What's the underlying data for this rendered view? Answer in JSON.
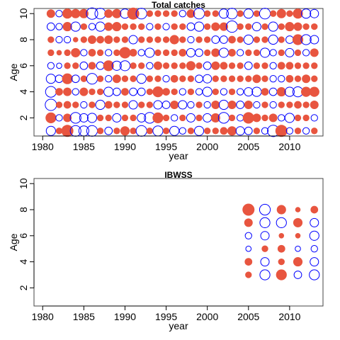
{
  "chart_data": [
    {
      "type": "scatter",
      "subtype": "bubble",
      "title": "Total catches",
      "xlabel": "year",
      "ylabel": "Age",
      "xlim": [
        1980,
        2013
      ],
      "ylim": [
        1,
        10
      ],
      "xticks": [
        1980,
        1985,
        1990,
        1995,
        2000,
        2005,
        2010
      ],
      "yticks": [
        2,
        4,
        6,
        8,
        10
      ],
      "xtick_labels": [
        "1980",
        "1985",
        "1990",
        "1995",
        "2000",
        "2005",
        "2010"
      ],
      "ytick_labels": [
        "2",
        "4",
        "6",
        "8",
        "10"
      ],
      "grid": false,
      "legend": "none",
      "colors": {
        "positive": "#e8553f",
        "negative": "#0000ff"
      },
      "encoding": "residual magnitude as circle size; positive = filled red, negative = open blue",
      "years": [
        1981,
        1982,
        1983,
        1984,
        1985,
        1986,
        1987,
        1988,
        1989,
        1990,
        1991,
        1992,
        1993,
        1994,
        1995,
        1996,
        1997,
        1998,
        1999,
        2000,
        2001,
        2002,
        2003,
        2004,
        2005,
        2006,
        2007,
        2008,
        2009,
        2010,
        2011,
        2012,
        2013
      ],
      "ages": [
        1,
        2,
        3,
        4,
        5,
        6,
        7,
        8,
        9,
        10
      ],
      "residuals": [
        [
          -0.6,
          0.8,
          -0.9,
          -0.8,
          -0.6,
          -0.3,
          0.3,
          0.3,
          -0.4,
          0.5
        ],
        [
          0.3,
          -0.3,
          0.3,
          0.4,
          -0.4,
          -0.2,
          0.2,
          -0.3,
          -0.3,
          -0.3
        ],
        [
          1.0,
          0.5,
          0.4,
          0.5,
          0.8,
          0.3,
          0.3,
          -0.3,
          0.6,
          0.7
        ],
        [
          -0.8,
          -0.8,
          0.3,
          -0.3,
          -0.4,
          0.3,
          0.6,
          0.2,
          -0.6,
          0.6
        ],
        [
          -0.7,
          -0.5,
          -0.3,
          0.5,
          0.3,
          -0.4,
          -0.3,
          0.3,
          0.3,
          0.6
        ],
        [
          -0.8,
          -0.6,
          0.3,
          0.3,
          -0.8,
          0.4,
          0.4,
          0.5,
          -0.3,
          -0.9
        ],
        [
          0.3,
          0.3,
          -0.6,
          0.3,
          0.3,
          -0.4,
          0.3,
          0.4,
          -0.6,
          -0.8
        ],
        [
          -0.4,
          0.3,
          0.4,
          -0.6,
          -0.3,
          0.8,
          -0.3,
          0.5,
          0.5,
          0.5
        ],
        [
          0.3,
          -0.5,
          0.3,
          -0.4,
          0.5,
          -0.6,
          0.3,
          0.3,
          0.6,
          0.6
        ],
        [
          0.6,
          0.3,
          0.3,
          0.4,
          0.3,
          -0.7,
          0.9,
          0.3,
          0.3,
          -0.6
        ],
        [
          0.3,
          0.3,
          -0.5,
          -0.4,
          0.3,
          0.3,
          0.4,
          -0.5,
          0.3,
          1.0
        ],
        [
          -0.8,
          -0.5,
          0.3,
          -0.4,
          -0.6,
          0.3,
          -0.3,
          0.3,
          0.3,
          -0.8
        ],
        [
          0.3,
          -0.8,
          0.3,
          0.3,
          0.3,
          -0.3,
          -0.6,
          0.3,
          -0.3,
          0.3
        ],
        [
          -0.7,
          0.8,
          -0.5,
          0.8,
          0.3,
          0.5,
          0.3,
          0.3,
          0.3,
          0.3
        ],
        [
          0.3,
          0.3,
          -0.4,
          0.4,
          -0.3,
          0.3,
          0.3,
          0.3,
          -0.3,
          0.3
        ],
        [
          -0.6,
          -0.3,
          0.5,
          0.3,
          0.4,
          0.3,
          0.3,
          0.6,
          0.3,
          0.3
        ],
        [
          -0.3,
          0.3,
          -0.5,
          -0.3,
          0.3,
          0.3,
          0.4,
          0.3,
          0.3,
          -0.3
        ],
        [
          0.3,
          -0.5,
          -0.3,
          0.3,
          0.3,
          0.6,
          -0.5,
          -0.3,
          -0.4,
          0.5
        ],
        [
          -0.6,
          0.3,
          0.3,
          -0.3,
          -0.4,
          0.3,
          -0.4,
          0.3,
          -0.6,
          -0.8
        ],
        [
          0.3,
          -0.5,
          -0.3,
          -0.6,
          -0.5,
          -0.4,
          0.3,
          0.3,
          0.3,
          0.3
        ],
        [
          0.3,
          0.6,
          0.5,
          0.3,
          0.3,
          0.5,
          0.5,
          -0.4,
          0.5,
          0.3
        ],
        [
          0.4,
          -0.8,
          -0.6,
          -0.3,
          0.3,
          0.4,
          -0.6,
          -0.4,
          0.5,
          -0.6
        ],
        [
          0.6,
          0.3,
          0.5,
          0.3,
          0.3,
          0.3,
          0.4,
          0.4,
          -0.9,
          -0.8
        ],
        [
          -0.5,
          -0.3,
          -0.4,
          -0.3,
          0.3,
          0.3,
          -0.3,
          0.3,
          0.3,
          0.3
        ],
        [
          -0.4,
          0.9,
          0.5,
          -0.5,
          0.3,
          -0.4,
          0.3,
          -0.6,
          0.3,
          -0.6
        ],
        [
          0.3,
          0.5,
          -0.3,
          -0.6,
          0.5,
          0.3,
          0.3,
          0.3,
          -0.5,
          0.3
        ],
        [
          -0.3,
          0.3,
          0.3,
          0.4,
          0.3,
          0.3,
          -0.6,
          0.3,
          0.3,
          -0.8
        ],
        [
          -0.9,
          0.5,
          -0.3,
          -0.4,
          -0.3,
          -0.3,
          -0.3,
          -0.6,
          -0.6,
          0.3
        ],
        [
          1.0,
          -0.3,
          0.3,
          0.6,
          -0.3,
          0.4,
          0.3,
          0.3,
          0.3,
          0.6
        ],
        [
          -0.3,
          -0.6,
          0.3,
          -0.6,
          0.4,
          0.4,
          -0.5,
          -0.4,
          0.6,
          0.3
        ],
        [
          0.3,
          0.3,
          0.4,
          -0.7,
          0.3,
          0.3,
          0.3,
          0.8,
          0.5,
          0.7
        ],
        [
          -0.3,
          0.3,
          0.3,
          0.7,
          0.5,
          0.3,
          -0.3,
          -0.7,
          0.3,
          -0.6
        ],
        [
          0.3,
          -0.3,
          0.5,
          0.7,
          0.3,
          0.3,
          0.5,
          -0.5,
          0.3,
          -0.5
        ]
      ]
    },
    {
      "type": "scatter",
      "subtype": "bubble",
      "title": "IBWSS",
      "xlabel": "year",
      "ylabel": "Age",
      "xlim": [
        1980,
        2013
      ],
      "ylim": [
        1,
        10
      ],
      "xticks": [
        1980,
        1985,
        1990,
        1995,
        2000,
        2005,
        2010
      ],
      "yticks": [
        2,
        4,
        6,
        8,
        10
      ],
      "xtick_labels": [
        "1980",
        "1985",
        "1990",
        "1995",
        "2000",
        "2005",
        "2010"
      ],
      "ytick_labels": [
        "2",
        "4",
        "6",
        "8",
        "10"
      ],
      "grid": false,
      "legend": "none",
      "colors": {
        "positive": "#e8553f",
        "negative": "#0000ff"
      },
      "encoding": "residual magnitude as circle size; positive = filled red, negative = open blue",
      "years": [
        2005,
        2007,
        2009,
        2011,
        2013
      ],
      "ages": [
        3,
        4,
        5,
        6,
        7,
        8
      ],
      "residuals": [
        [
          0.3,
          0.4,
          -0.2,
          -0.3,
          0.5,
          1.0
        ],
        [
          -0.7,
          -0.5,
          0.3,
          -0.5,
          -0.7,
          -0.8
        ],
        [
          0.8,
          0.3,
          0.4,
          0.2,
          -0.7,
          0.6
        ],
        [
          -0.4,
          0.6,
          -0.2,
          0.2,
          0.6,
          0.2
        ],
        [
          -0.7,
          -0.5,
          -0.3,
          -0.6,
          -0.5,
          0.4
        ]
      ]
    }
  ]
}
